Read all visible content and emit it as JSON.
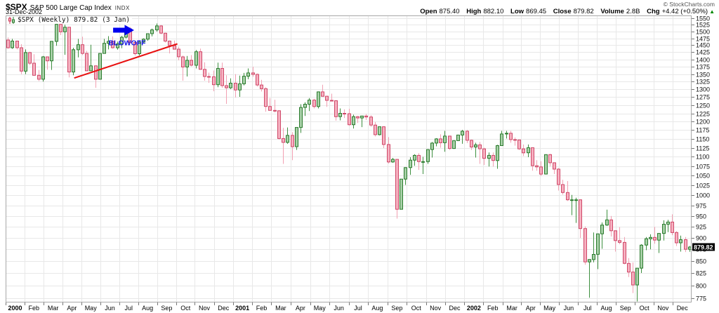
{
  "header": {
    "symbol": "$SPX",
    "name": "S&P 500 Large Cap Index",
    "exchange": "INDX",
    "date": "31-Dec-2002",
    "copyright": "© StockCharts.com",
    "quote": {
      "open_label": "Open",
      "open": "875.40",
      "high_label": "High",
      "high": "882.10",
      "low_label": "Low",
      "low": "869.45",
      "close_label": "Close",
      "close": "879.82",
      "volume_label": "Volume",
      "volume": "2.8B",
      "chg_label": "Chg",
      "chg": "+4.42 (+0.50%)",
      "chg_arrow": "▲"
    }
  },
  "legend": {
    "text": "$SPX (Weekly) 879.82 (3 Jan)"
  },
  "chart_data": {
    "type": "candlestick",
    "title": "$SPX (Weekly)",
    "timeframe": "weekly",
    "x_span_weeks": 157,
    "y_scale": "log",
    "ylim": [
      767,
      1561
    ],
    "grid": true,
    "y_ticks": [
      775,
      800,
      825,
      850,
      875,
      900,
      925,
      950,
      975,
      1000,
      1025,
      1050,
      1075,
      1100,
      1125,
      1150,
      1175,
      1200,
      1225,
      1250,
      1275,
      1300,
      1325,
      1350,
      1375,
      1400,
      1425,
      1450,
      1475,
      1500,
      1525,
      1550
    ],
    "x_ticks": [
      {
        "label": "2000",
        "week": 0,
        "bold": true
      },
      {
        "label": "Feb",
        "week": 4.3
      },
      {
        "label": "Mar",
        "week": 8.7
      },
      {
        "label": "Apr",
        "week": 13
      },
      {
        "label": "May",
        "week": 17.3
      },
      {
        "label": "Jun",
        "week": 21.7
      },
      {
        "label": "Jul",
        "week": 26
      },
      {
        "label": "Aug",
        "week": 30.3
      },
      {
        "label": "Sep",
        "week": 34.7
      },
      {
        "label": "Oct",
        "week": 39
      },
      {
        "label": "Nov",
        "week": 43.3
      },
      {
        "label": "Dec",
        "week": 47.7
      },
      {
        "label": "2001",
        "week": 52,
        "bold": true
      },
      {
        "label": "Feb",
        "week": 56.4
      },
      {
        "label": "Mar",
        "week": 60.8
      },
      {
        "label": "Apr",
        "week": 65.3
      },
      {
        "label": "May",
        "week": 69.7
      },
      {
        "label": "Jun",
        "week": 74.1
      },
      {
        "label": "Jul",
        "week": 78.5
      },
      {
        "label": "Aug",
        "week": 82.9
      },
      {
        "label": "Sep",
        "week": 87.4
      },
      {
        "label": "Oct",
        "week": 91.8
      },
      {
        "label": "Nov",
        "week": 96.2
      },
      {
        "label": "Dec",
        "week": 100.6
      },
      {
        "label": "2002",
        "week": 105,
        "bold": true
      },
      {
        "label": "Feb",
        "week": 109.3
      },
      {
        "label": "Mar",
        "week": 113.7
      },
      {
        "label": "Apr",
        "week": 118
      },
      {
        "label": "May",
        "week": 122.3
      },
      {
        "label": "Jun",
        "week": 126.7
      },
      {
        "label": "Jul",
        "week": 131
      },
      {
        "label": "Aug",
        "week": 135.3
      },
      {
        "label": "Sep",
        "week": 139.7
      },
      {
        "label": "Oct",
        "week": 144
      },
      {
        "label": "Nov",
        "week": 148.3
      },
      {
        "label": "Dec",
        "week": 152.7
      }
    ],
    "last_price_label": "879.82",
    "colors": {
      "up_border": "#2a7a2c",
      "up_fill": "#a6cfa6",
      "up_wick": "#3d8f3f",
      "down_border": "#cf4868",
      "down_fill": "#f6b0c0",
      "down_wick": "#f2a0b2",
      "grid": "#e8e8e8",
      "plot_border": "#a8a8a8",
      "axis_text": "#111",
      "price_box_bg": "#000000",
      "price_box_text": "#ffffff"
    },
    "annotations": {
      "trendline": {
        "x1_week": 15.7,
        "y1_price": 1337,
        "x2_week": 39.3,
        "y2_price": 1455,
        "color": "#e81010",
        "width": 2
      },
      "blowoff_arrow": {
        "week_tail": 24.6,
        "week_tip": 29.4,
        "price": 1505,
        "color": "#0000ee"
      },
      "blowoff_text": {
        "text": "BLOWOFF",
        "week": 27.8,
        "price": 1450,
        "color": "#1515e6"
      }
    },
    "candles_ohlc": [
      [
        1469,
        1478,
        1438,
        1441
      ],
      [
        1441,
        1473,
        1437,
        1465
      ],
      [
        1465,
        1465,
        1435,
        1441
      ],
      [
        1441,
        1454,
        1350,
        1360
      ],
      [
        1360,
        1435,
        1350,
        1424
      ],
      [
        1424,
        1427,
        1380,
        1387
      ],
      [
        1387,
        1418,
        1345,
        1346
      ],
      [
        1346,
        1364,
        1327,
        1333
      ],
      [
        1333,
        1412,
        1325,
        1409
      ],
      [
        1409,
        1410,
        1365,
        1395
      ],
      [
        1395,
        1464,
        1364,
        1464
      ],
      [
        1464,
        1552,
        1448,
        1527
      ],
      [
        1527,
        1532,
        1487,
        1499
      ],
      [
        1499,
        1526,
        1416,
        1516
      ],
      [
        1516,
        1516,
        1339,
        1357
      ],
      [
        1357,
        1441,
        1346,
        1434
      ],
      [
        1434,
        1473,
        1407,
        1452
      ],
      [
        1452,
        1481,
        1415,
        1421
      ],
      [
        1421,
        1430,
        1361,
        1361
      ],
      [
        1361,
        1452,
        1361,
        1378
      ],
      [
        1378,
        1379,
        1305,
        1333
      ],
      [
        1333,
        1422,
        1333,
        1421
      ],
      [
        1421,
        1473,
        1421,
        1457
      ],
      [
        1457,
        1483,
        1435,
        1464
      ],
      [
        1464,
        1482,
        1438,
        1441
      ],
      [
        1441,
        1463,
        1434,
        1455
      ],
      [
        1455,
        1484,
        1439,
        1479
      ],
      [
        1479,
        1517,
        1475,
        1510
      ],
      [
        1510,
        1517,
        1455,
        1460
      ],
      [
        1460,
        1464,
        1413,
        1420
      ],
      [
        1420,
        1468,
        1414,
        1462
      ],
      [
        1462,
        1475,
        1459,
        1472
      ],
      [
        1472,
        1493,
        1466,
        1492
      ],
      [
        1492,
        1511,
        1482,
        1506
      ],
      [
        1506,
        1530,
        1500,
        1521
      ],
      [
        1521,
        1524,
        1490,
        1494
      ],
      [
        1494,
        1496,
        1460,
        1465
      ],
      [
        1465,
        1467,
        1421,
        1449
      ],
      [
        1449,
        1467,
        1436,
        1436
      ],
      [
        1436,
        1445,
        1397,
        1409
      ],
      [
        1409,
        1413,
        1328,
        1374
      ],
      [
        1374,
        1412,
        1342,
        1397
      ],
      [
        1397,
        1415,
        1376,
        1380
      ],
      [
        1380,
        1433,
        1369,
        1427
      ],
      [
        1427,
        1438,
        1365,
        1366
      ],
      [
        1366,
        1390,
        1328,
        1342
      ],
      [
        1342,
        1355,
        1321,
        1341
      ],
      [
        1341,
        1362,
        1294,
        1315
      ],
      [
        1315,
        1389,
        1307,
        1369
      ],
      [
        1369,
        1389,
        1305,
        1312
      ],
      [
        1312,
        1346,
        1254,
        1305
      ],
      [
        1305,
        1336,
        1301,
        1320
      ],
      [
        1320,
        1350,
        1274,
        1298
      ],
      [
        1298,
        1345,
        1276,
        1318
      ],
      [
        1318,
        1354,
        1313,
        1343
      ],
      [
        1343,
        1369,
        1333,
        1354
      ],
      [
        1354,
        1375,
        1341,
        1349
      ],
      [
        1349,
        1352,
        1309,
        1314
      ],
      [
        1314,
        1331,
        1293,
        1302
      ],
      [
        1302,
        1307,
        1230,
        1246
      ],
      [
        1246,
        1272,
        1234,
        1234
      ],
      [
        1234,
        1267,
        1228,
        1233
      ],
      [
        1233,
        1233,
        1148,
        1151
      ],
      [
        1151,
        1182,
        1081,
        1140
      ],
      [
        1140,
        1183,
        1136,
        1160
      ],
      [
        1160,
        1169,
        1091,
        1128
      ],
      [
        1128,
        1183,
        1119,
        1183
      ],
      [
        1183,
        1253,
        1167,
        1243
      ],
      [
        1243,
        1259,
        1217,
        1253
      ],
      [
        1253,
        1272,
        1232,
        1266
      ],
      [
        1266,
        1270,
        1240,
        1246
      ],
      [
        1246,
        1293,
        1240,
        1292
      ],
      [
        1292,
        1315,
        1277,
        1278
      ],
      [
        1278,
        1278,
        1245,
        1265
      ],
      [
        1265,
        1286,
        1264,
        1264
      ],
      [
        1264,
        1265,
        1203,
        1215
      ],
      [
        1215,
        1240,
        1204,
        1225
      ],
      [
        1225,
        1237,
        1211,
        1224
      ],
      [
        1224,
        1239,
        1188,
        1191
      ],
      [
        1191,
        1221,
        1180,
        1215
      ],
      [
        1215,
        1217,
        1196,
        1211
      ],
      [
        1211,
        1217,
        1184,
        1217
      ],
      [
        1217,
        1223,
        1205,
        1214
      ],
      [
        1214,
        1219,
        1185,
        1190
      ],
      [
        1190,
        1199,
        1157,
        1162
      ],
      [
        1162,
        1185,
        1160,
        1185
      ],
      [
        1185,
        1186,
        1124,
        1134
      ],
      [
        1134,
        1155,
        1082,
        1086
      ],
      [
        1086,
        1097,
        1084,
        1093
      ],
      [
        1093,
        1093,
        944,
        966
      ],
      [
        966,
        1041,
        966,
        1041
      ],
      [
        1041,
        1072,
        1026,
        1071
      ],
      [
        1071,
        1099,
        1052,
        1091
      ],
      [
        1091,
        1107,
        1076,
        1104
      ],
      [
        1104,
        1110,
        1065,
        1087
      ],
      [
        1087,
        1100,
        1054,
        1087
      ],
      [
        1087,
        1121,
        1081,
        1120
      ],
      [
        1120,
        1141,
        1098,
        1138
      ],
      [
        1138,
        1152,
        1129,
        1150
      ],
      [
        1150,
        1163,
        1125,
        1139
      ],
      [
        1139,
        1173,
        1114,
        1158
      ],
      [
        1158,
        1158,
        1119,
        1123
      ],
      [
        1123,
        1145,
        1122,
        1145
      ],
      [
        1145,
        1161,
        1144,
        1161
      ],
      [
        1161,
        1176,
        1136,
        1172
      ],
      [
        1172,
        1176,
        1138,
        1146
      ],
      [
        1146,
        1148,
        1119,
        1127
      ],
      [
        1127,
        1139,
        1098,
        1133
      ],
      [
        1133,
        1141,
        1081,
        1122
      ],
      [
        1122,
        1125,
        1078,
        1096
      ],
      [
        1096,
        1112,
        1074,
        1104
      ],
      [
        1104,
        1112,
        1074,
        1090
      ],
      [
        1090,
        1133,
        1068,
        1131
      ],
      [
        1131,
        1173,
        1130,
        1164
      ],
      [
        1164,
        1173,
        1151,
        1166
      ],
      [
        1166,
        1173,
        1139,
        1148
      ],
      [
        1148,
        1154,
        1131,
        1147
      ],
      [
        1147,
        1148,
        1119,
        1122
      ],
      [
        1122,
        1134,
        1102,
        1111
      ],
      [
        1111,
        1134,
        1099,
        1125
      ],
      [
        1125,
        1125,
        1063,
        1076
      ],
      [
        1076,
        1091,
        1063,
        1073
      ],
      [
        1073,
        1088,
        1049,
        1054
      ],
      [
        1054,
        1106,
        1053,
        1106
      ],
      [
        1106,
        1108,
        1075,
        1084
      ],
      [
        1084,
        1085,
        1054,
        1067
      ],
      [
        1067,
        1070,
        1012,
        1027
      ],
      [
        1027,
        1039,
        1002,
        1007
      ],
      [
        1007,
        1036,
        986,
        989
      ],
      [
        989,
        1001,
        952,
        989
      ],
      [
        989,
        994,
        934,
        989
      ],
      [
        989,
        990,
        900,
        921
      ],
      [
        921,
        926,
        842,
        848
      ],
      [
        848,
        854,
        776,
        853
      ],
      [
        853,
        912,
        847,
        864
      ],
      [
        864,
        908,
        833,
        909
      ],
      [
        909,
        935,
        876,
        929
      ],
      [
        929,
        965,
        927,
        941
      ],
      [
        941,
        950,
        903,
        916
      ],
      [
        916,
        917,
        870,
        894
      ],
      [
        894,
        924,
        886,
        890
      ],
      [
        890,
        902,
        843,
        845
      ],
      [
        845,
        856,
        817,
        827
      ],
      [
        827,
        847,
        785,
        801
      ],
      [
        801,
        808,
        769,
        835
      ],
      [
        835,
        886,
        825,
        884
      ],
      [
        884,
        902,
        873,
        898
      ],
      [
        898,
        908,
        875,
        901
      ],
      [
        901,
        925,
        887,
        895
      ],
      [
        895,
        910,
        867,
        910
      ],
      [
        910,
        940,
        894,
        931
      ],
      [
        931,
        941,
        913,
        936
      ],
      [
        936,
        954,
        906,
        912
      ],
      [
        912,
        915,
        882,
        889
      ],
      [
        889,
        905,
        870,
        896
      ],
      [
        896,
        902,
        869,
        875
      ],
      [
        875,
        882.1,
        869.45,
        879.82
      ]
    ]
  }
}
